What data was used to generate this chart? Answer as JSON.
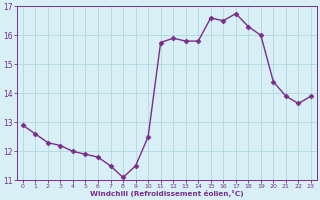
{
  "x": [
    0,
    1,
    2,
    3,
    4,
    5,
    6,
    7,
    8,
    9,
    10,
    11,
    12,
    13,
    14,
    15,
    16,
    17,
    18,
    19,
    20,
    21,
    22,
    23
  ],
  "y": [
    12.9,
    12.6,
    12.3,
    12.2,
    12.0,
    11.9,
    11.8,
    11.5,
    11.1,
    11.5,
    12.5,
    15.75,
    15.9,
    15.8,
    15.8,
    16.6,
    16.5,
    16.75,
    16.3,
    16.0,
    14.4,
    13.9,
    13.65,
    13.9
  ],
  "line_color": "#7b2d8b",
  "marker": "D",
  "marker_size": 2.5,
  "bg_color": "#d7eff5",
  "grid_color": "#b0d8e0",
  "xlabel": "Windchill (Refroidissement éolien,°C)",
  "xlabel_color": "#7b2d8b",
  "tick_color": "#7b2d8b",
  "spine_color": "#7b2d8b",
  "ylim": [
    11,
    17
  ],
  "xlim": [
    -0.5,
    23.5
  ],
  "yticks": [
    11,
    12,
    13,
    14,
    15,
    16,
    17
  ],
  "xticks": [
    0,
    1,
    2,
    3,
    4,
    5,
    6,
    7,
    8,
    9,
    10,
    11,
    12,
    13,
    14,
    15,
    16,
    17,
    18,
    19,
    20,
    21,
    22,
    23
  ],
  "linewidth": 1.0,
  "fig_width": 3.2,
  "fig_height": 2.0,
  "dpi": 100
}
